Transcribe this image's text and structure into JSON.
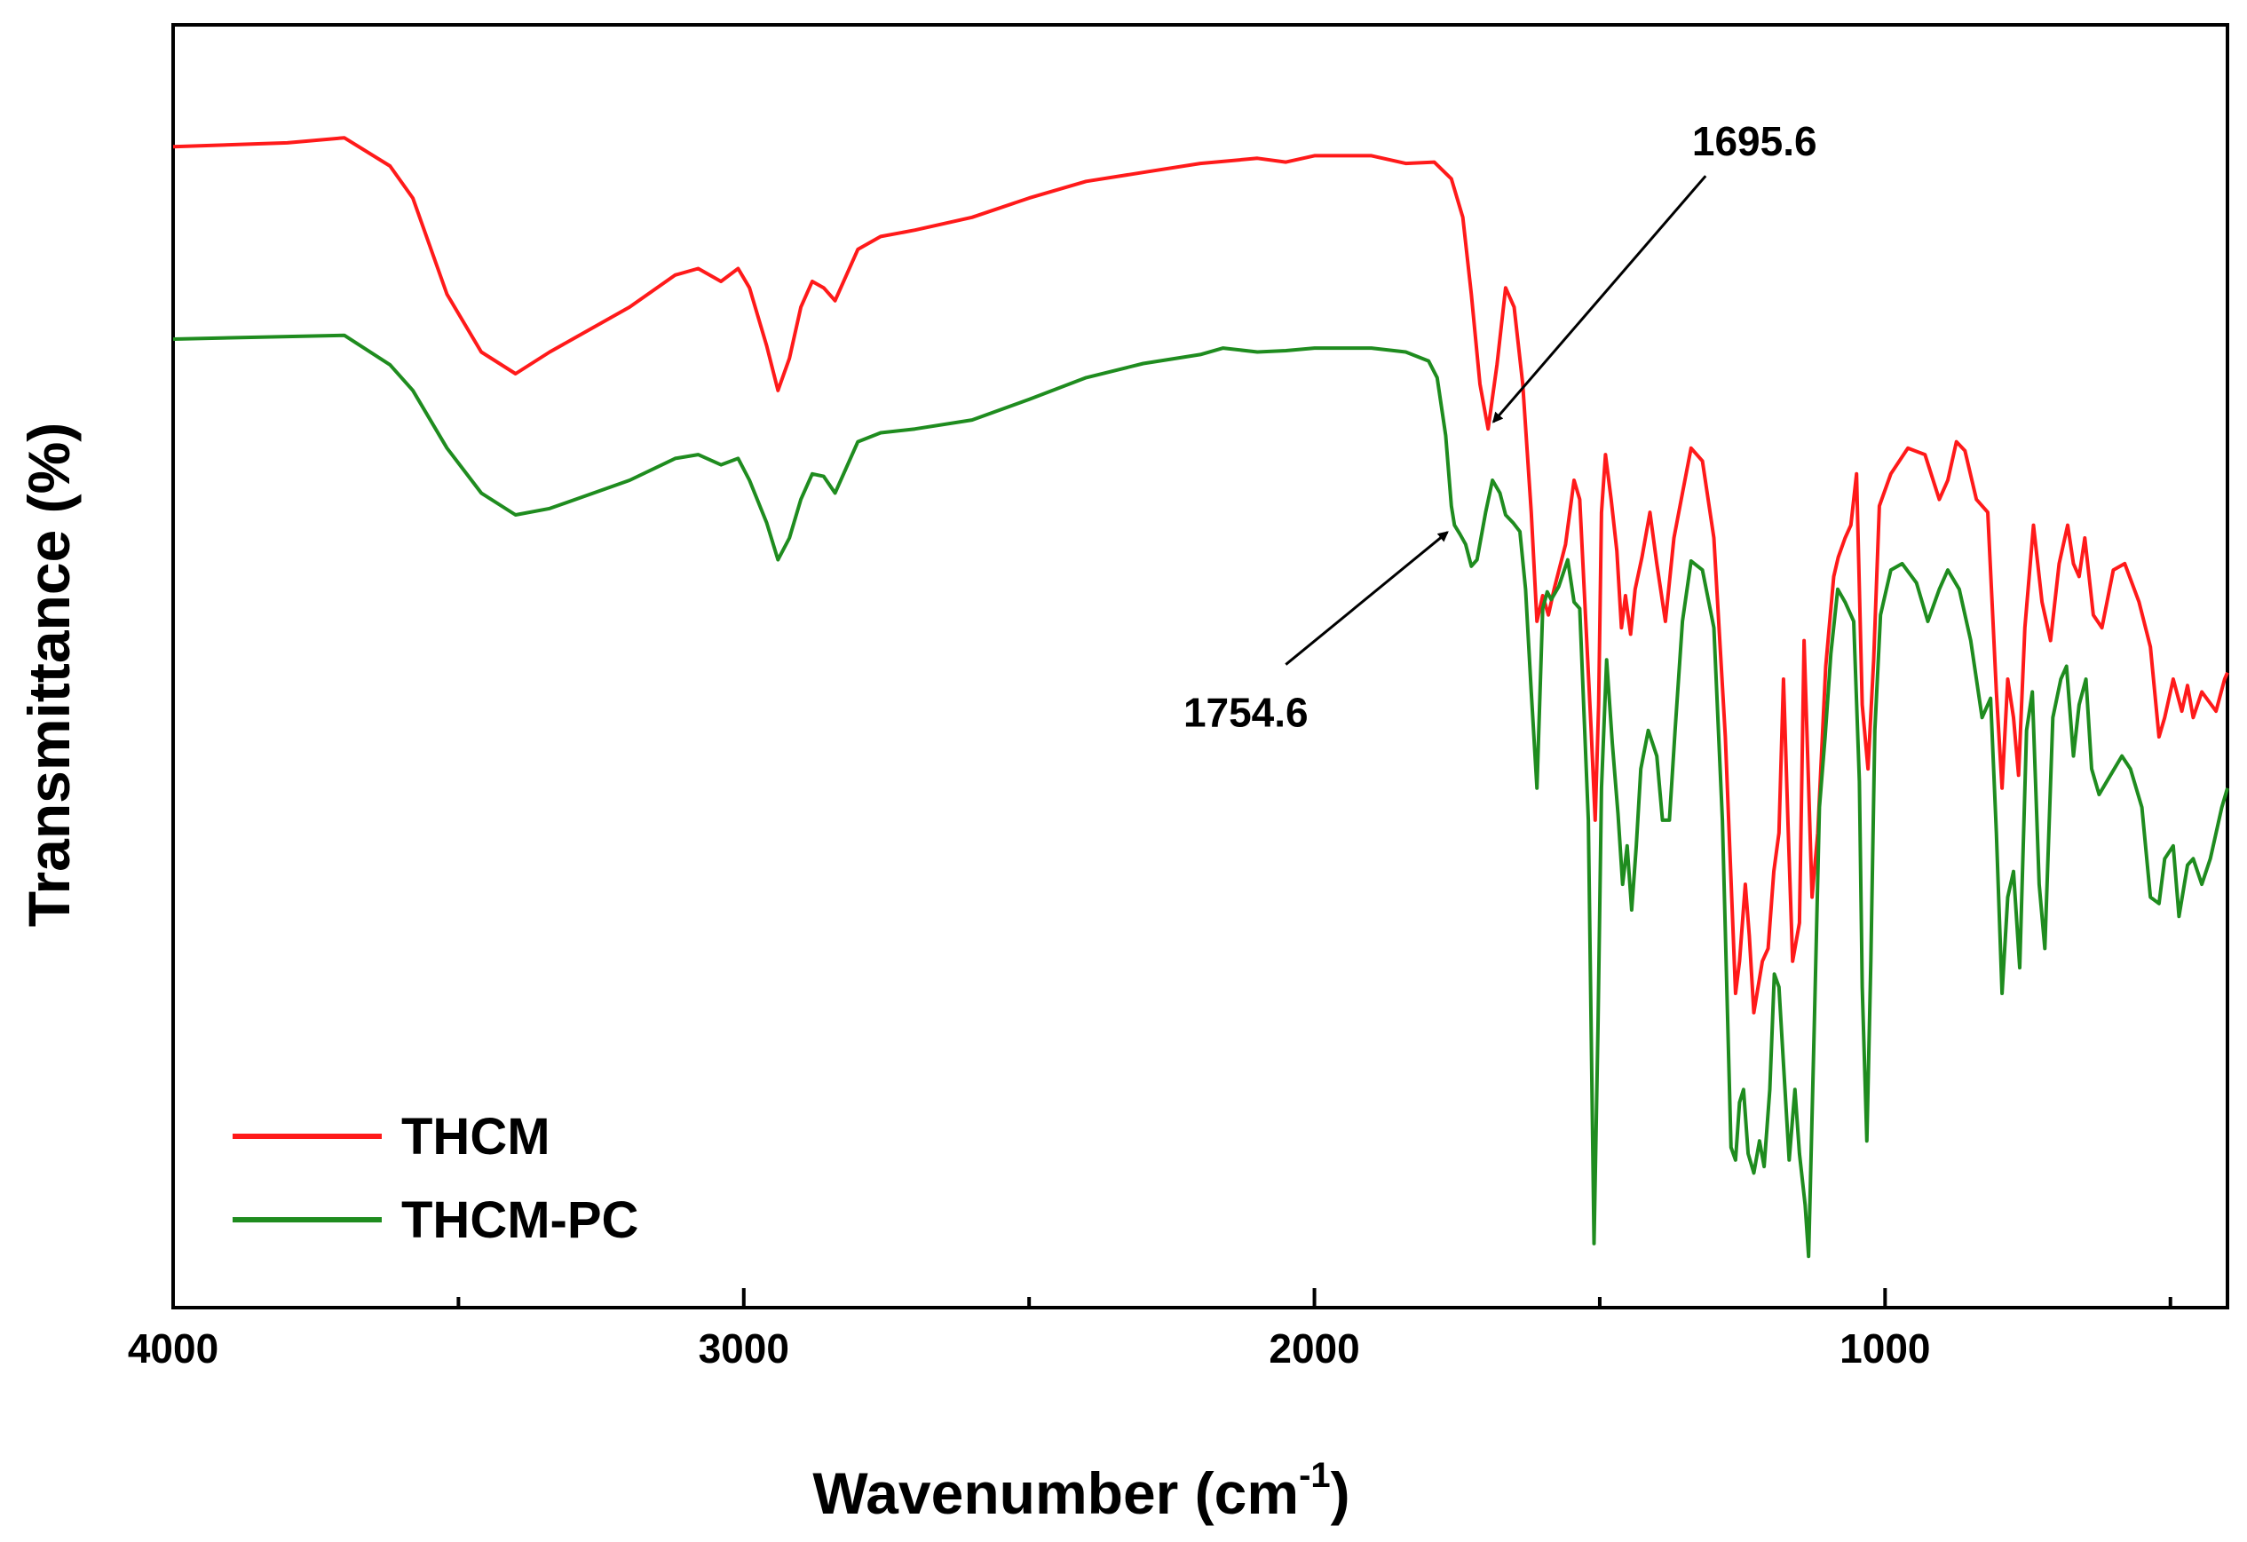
{
  "chart_data": {
    "type": "line",
    "title": "",
    "xlabel": "Wavenumber (cm",
    "xlabel_superscript": "-1",
    "xlabel_suffix": ")",
    "ylabel": "Transmittance (%)",
    "xlim": [
      4000,
      400
    ],
    "ylim": [
      0,
      100
    ],
    "x_ticks": [
      4000,
      3000,
      2000,
      1000
    ],
    "x_tick_labels": [
      "4000",
      "3000",
      "2000",
      "1000"
    ],
    "x_minor_ticks": [
      3500,
      2500,
      1500,
      500
    ],
    "y_ticks_shown": false,
    "legend_position": "bottom-left",
    "series": [
      {
        "name": "THCM",
        "color": "#ff1a1a",
        "points": [
          [
            4000,
            90.5
          ],
          [
            3800,
            90.8
          ],
          [
            3700,
            91.2
          ],
          [
            3620,
            89
          ],
          [
            3580,
            86.5
          ],
          [
            3520,
            79
          ],
          [
            3460,
            74.5
          ],
          [
            3400,
            72.8
          ],
          [
            3340,
            74.5
          ],
          [
            3200,
            78
          ],
          [
            3120,
            80.5
          ],
          [
            3080,
            81
          ],
          [
            3040,
            80
          ],
          [
            3010,
            81
          ],
          [
            2990,
            79.5
          ],
          [
            2960,
            75
          ],
          [
            2940,
            71.5
          ],
          [
            2920,
            74
          ],
          [
            2900,
            78
          ],
          [
            2880,
            80
          ],
          [
            2860,
            79.5
          ],
          [
            2840,
            78.5
          ],
          [
            2800,
            82.5
          ],
          [
            2760,
            83.5
          ],
          [
            2700,
            84
          ],
          [
            2600,
            85
          ],
          [
            2500,
            86.5
          ],
          [
            2400,
            87.8
          ],
          [
            2300,
            88.5
          ],
          [
            2200,
            89.2
          ],
          [
            2100,
            89.6
          ],
          [
            2050,
            89.3
          ],
          [
            2000,
            89.8
          ],
          [
            1900,
            89.8
          ],
          [
            1840,
            89.2
          ],
          [
            1790,
            89.3
          ],
          [
            1760,
            88
          ],
          [
            1740,
            85
          ],
          [
            1725,
            79
          ],
          [
            1710,
            72
          ],
          [
            1695.6,
            68.5
          ],
          [
            1680,
            73.5
          ],
          [
            1665,
            79.5
          ],
          [
            1650,
            78
          ],
          [
            1635,
            72
          ],
          [
            1620,
            62
          ],
          [
            1610,
            53.5
          ],
          [
            1600,
            55.5
          ],
          [
            1590,
            54
          ],
          [
            1580,
            56
          ],
          [
            1560,
            59.5
          ],
          [
            1545,
            64.5
          ],
          [
            1535,
            63
          ],
          [
            1515,
            45
          ],
          [
            1508,
            38
          ],
          [
            1502,
            47
          ],
          [
            1497,
            62
          ],
          [
            1490,
            66.5
          ],
          [
            1480,
            63
          ],
          [
            1470,
            59
          ],
          [
            1462,
            53
          ],
          [
            1455,
            55.5
          ],
          [
            1446,
            52.5
          ],
          [
            1438,
            56
          ],
          [
            1426,
            58.5
          ],
          [
            1412,
            62
          ],
          [
            1400,
            58
          ],
          [
            1385,
            53.5
          ],
          [
            1370,
            60
          ],
          [
            1355,
            63.5
          ],
          [
            1340,
            67
          ],
          [
            1320,
            66
          ],
          [
            1300,
            60
          ],
          [
            1280,
            44.5
          ],
          [
            1262,
            24.5
          ],
          [
            1255,
            27
          ],
          [
            1245,
            33
          ],
          [
            1238,
            29
          ],
          [
            1230,
            23
          ],
          [
            1215,
            27
          ],
          [
            1205,
            28
          ],
          [
            1195,
            34
          ],
          [
            1186,
            37
          ],
          [
            1178,
            49
          ],
          [
            1170,
            37.5
          ],
          [
            1162,
            27
          ],
          [
            1150,
            30
          ],
          [
            1142,
            52
          ],
          [
            1128,
            32
          ],
          [
            1118,
            37
          ],
          [
            1104,
            50
          ],
          [
            1090,
            57
          ],
          [
            1082,
            58.5
          ],
          [
            1070,
            60
          ],
          [
            1060,
            61
          ],
          [
            1050,
            65
          ],
          [
            1040,
            47
          ],
          [
            1030,
            42
          ],
          [
            1020,
            50.5
          ],
          [
            1010,
            62.5
          ],
          [
            990,
            65
          ],
          [
            960,
            67
          ],
          [
            930,
            66.5
          ],
          [
            905,
            63
          ],
          [
            890,
            64.5
          ],
          [
            875,
            67.5
          ],
          [
            860,
            66.8
          ],
          [
            840,
            63
          ],
          [
            820,
            62
          ],
          [
            805,
            48
          ],
          [
            795,
            40.5
          ],
          [
            785,
            49
          ],
          [
            775,
            46
          ],
          [
            766,
            41.5
          ],
          [
            755,
            53
          ],
          [
            740,
            61
          ],
          [
            725,
            55
          ],
          [
            710,
            52
          ],
          [
            695,
            58
          ],
          [
            680,
            61
          ],
          [
            670,
            58
          ],
          [
            660,
            57
          ],
          [
            650,
            60
          ],
          [
            635,
            54
          ],
          [
            620,
            53
          ],
          [
            600,
            57.5
          ],
          [
            580,
            58
          ],
          [
            555,
            55
          ],
          [
            535,
            51.5
          ],
          [
            520,
            44.5
          ],
          [
            510,
            46
          ],
          [
            495,
            49
          ],
          [
            480,
            46.5
          ],
          [
            470,
            48.5
          ],
          [
            460,
            46
          ],
          [
            445,
            48
          ],
          [
            420,
            46.5
          ],
          [
            405,
            49
          ],
          [
            400,
            49.5
          ]
        ]
      },
      {
        "name": "THCM-PC",
        "color": "#1f8c1f",
        "points": [
          [
            4000,
            75.5
          ],
          [
            3800,
            75.7
          ],
          [
            3700,
            75.8
          ],
          [
            3620,
            73.5
          ],
          [
            3580,
            71.5
          ],
          [
            3520,
            67
          ],
          [
            3460,
            63.5
          ],
          [
            3400,
            61.8
          ],
          [
            3340,
            62.3
          ],
          [
            3200,
            64.5
          ],
          [
            3120,
            66.2
          ],
          [
            3080,
            66.5
          ],
          [
            3040,
            65.7
          ],
          [
            3010,
            66.2
          ],
          [
            2990,
            64.5
          ],
          [
            2960,
            61.2
          ],
          [
            2940,
            58.3
          ],
          [
            2920,
            60
          ],
          [
            2900,
            63
          ],
          [
            2880,
            65
          ],
          [
            2860,
            64.8
          ],
          [
            2840,
            63.5
          ],
          [
            2800,
            67.5
          ],
          [
            2760,
            68.2
          ],
          [
            2700,
            68.5
          ],
          [
            2600,
            69.2
          ],
          [
            2500,
            70.8
          ],
          [
            2400,
            72.5
          ],
          [
            2300,
            73.6
          ],
          [
            2200,
            74.3
          ],
          [
            2160,
            74.8
          ],
          [
            2100,
            74.5
          ],
          [
            2050,
            74.6
          ],
          [
            2000,
            74.8
          ],
          [
            1900,
            74.8
          ],
          [
            1840,
            74.5
          ],
          [
            1800,
            73.8
          ],
          [
            1785,
            72.5
          ],
          [
            1770,
            68
          ],
          [
            1760,
            62.5
          ],
          [
            1754.6,
            61
          ],
          [
            1745,
            60.3
          ],
          [
            1735,
            59.5
          ],
          [
            1725,
            57.8
          ],
          [
            1715,
            58.3
          ],
          [
            1700,
            62
          ],
          [
            1688,
            64.5
          ],
          [
            1675,
            63.5
          ],
          [
            1665,
            61.8
          ],
          [
            1652,
            61.2
          ],
          [
            1640,
            60.5
          ],
          [
            1630,
            56
          ],
          [
            1620,
            48
          ],
          [
            1610,
            40.5
          ],
          [
            1600,
            54.5
          ],
          [
            1592,
            55.8
          ],
          [
            1585,
            55.2
          ],
          [
            1572,
            56.2
          ],
          [
            1556,
            58.3
          ],
          [
            1545,
            55
          ],
          [
            1535,
            54.5
          ],
          [
            1520,
            38
          ],
          [
            1510,
            5
          ],
          [
            1503,
            22
          ],
          [
            1497,
            40.5
          ],
          [
            1488,
            50.5
          ],
          [
            1478,
            44
          ],
          [
            1468,
            38.5
          ],
          [
            1460,
            33
          ],
          [
            1452,
            36
          ],
          [
            1444,
            31
          ],
          [
            1436,
            36
          ],
          [
            1428,
            42
          ],
          [
            1415,
            45
          ],
          [
            1400,
            43
          ],
          [
            1390,
            38
          ],
          [
            1378,
            38
          ],
          [
            1368,
            45
          ],
          [
            1355,
            53.5
          ],
          [
            1340,
            58.2
          ],
          [
            1320,
            57.5
          ],
          [
            1300,
            53
          ],
          [
            1285,
            38
          ],
          [
            1270,
            12.5
          ],
          [
            1262,
            11.5
          ],
          [
            1255,
            16
          ],
          [
            1248,
            17
          ],
          [
            1240,
            12
          ],
          [
            1230,
            10.5
          ],
          [
            1220,
            13
          ],
          [
            1212,
            11
          ],
          [
            1202,
            17
          ],
          [
            1194,
            26
          ],
          [
            1186,
            25
          ],
          [
            1178,
            19
          ],
          [
            1168,
            11.5
          ],
          [
            1158,
            17
          ],
          [
            1150,
            12
          ],
          [
            1140,
            8
          ],
          [
            1134,
            4
          ],
          [
            1124,
            22
          ],
          [
            1115,
            39
          ],
          [
            1105,
            44.5
          ],
          [
            1095,
            51
          ],
          [
            1083,
            56
          ],
          [
            1070,
            55
          ],
          [
            1055,
            53.5
          ],
          [
            1045,
            41
          ],
          [
            1040,
            25
          ],
          [
            1032,
            13
          ],
          [
            1025,
            27
          ],
          [
            1018,
            45
          ],
          [
            1008,
            54
          ],
          [
            990,
            57.5
          ],
          [
            970,
            58
          ],
          [
            945,
            56.5
          ],
          [
            925,
            53.5
          ],
          [
            905,
            56
          ],
          [
            890,
            57.5
          ],
          [
            870,
            56
          ],
          [
            850,
            52
          ],
          [
            830,
            46
          ],
          [
            815,
            47.5
          ],
          [
            805,
            37
          ],
          [
            795,
            24.5
          ],
          [
            785,
            32
          ],
          [
            775,
            34
          ],
          [
            764,
            26.5
          ],
          [
            752,
            45
          ],
          [
            742,
            48
          ],
          [
            730,
            33
          ],
          [
            720,
            28
          ],
          [
            706,
            46
          ],
          [
            692,
            49
          ],
          [
            682,
            50
          ],
          [
            670,
            43
          ],
          [
            660,
            47
          ],
          [
            648,
            49
          ],
          [
            638,
            42
          ],
          [
            625,
            40
          ],
          [
            605,
            41.5
          ],
          [
            585,
            43
          ],
          [
            570,
            42
          ],
          [
            550,
            39
          ],
          [
            535,
            32
          ],
          [
            520,
            31.5
          ],
          [
            510,
            35
          ],
          [
            495,
            36
          ],
          [
            485,
            30.5
          ],
          [
            470,
            34.5
          ],
          [
            460,
            35
          ],
          [
            445,
            33
          ],
          [
            430,
            35
          ],
          [
            410,
            39
          ],
          [
            400,
            40.5
          ]
        ]
      }
    ],
    "annotations": [
      {
        "text": "1695.6",
        "x": 1695.6,
        "target_series": "THCM",
        "arrow": "from upper-right"
      },
      {
        "text": "1754.6",
        "x": 1754.6,
        "target_series": "THCM-PC",
        "arrow": "from lower-left"
      }
    ]
  }
}
